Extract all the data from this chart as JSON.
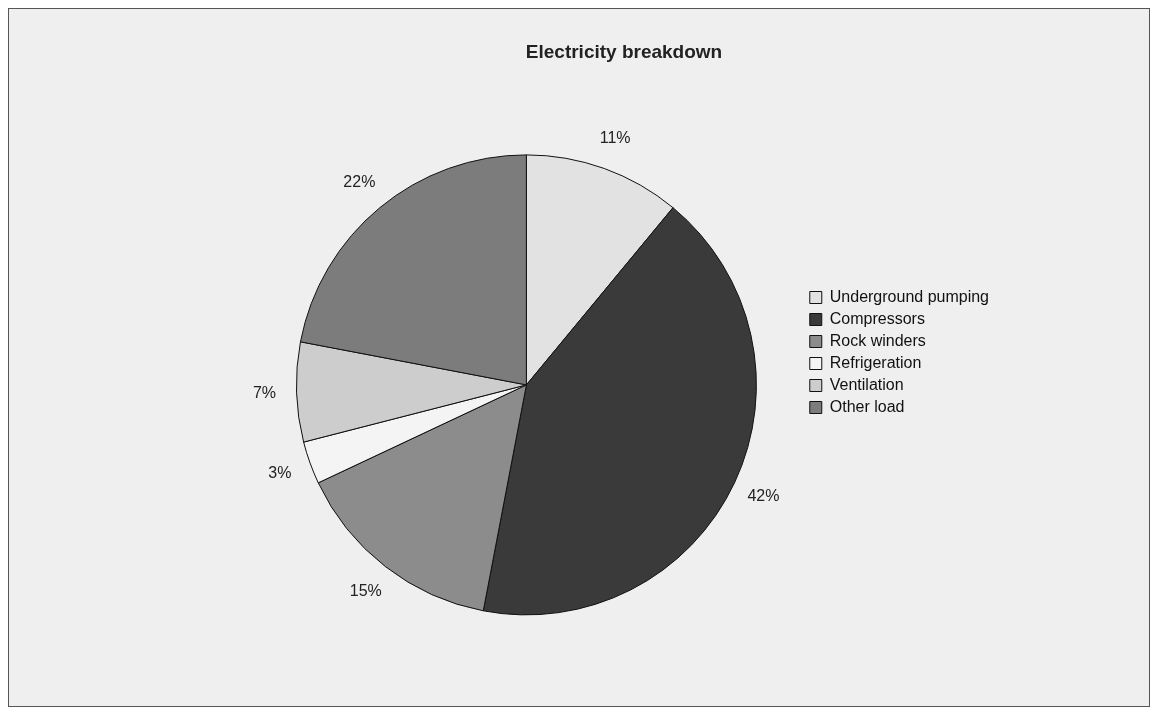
{
  "chart_data": {
    "type": "pie",
    "title": "Electricity breakdown",
    "categories": [
      "Underground pumping",
      "Compressors",
      "Rock winders",
      "Refrigeration",
      "Ventilation",
      "Other load"
    ],
    "values": [
      11,
      42,
      15,
      3,
      7,
      22
    ],
    "value_labels": [
      "11%",
      "42%",
      "15%",
      "3%",
      "7%",
      "22%"
    ],
    "colors": [
      "#e2e2e2",
      "#3a3a3a",
      "#8c8c8c",
      "#f4f4f4",
      "#cdcdcd",
      "#7c7c7c"
    ],
    "legend": "right"
  }
}
